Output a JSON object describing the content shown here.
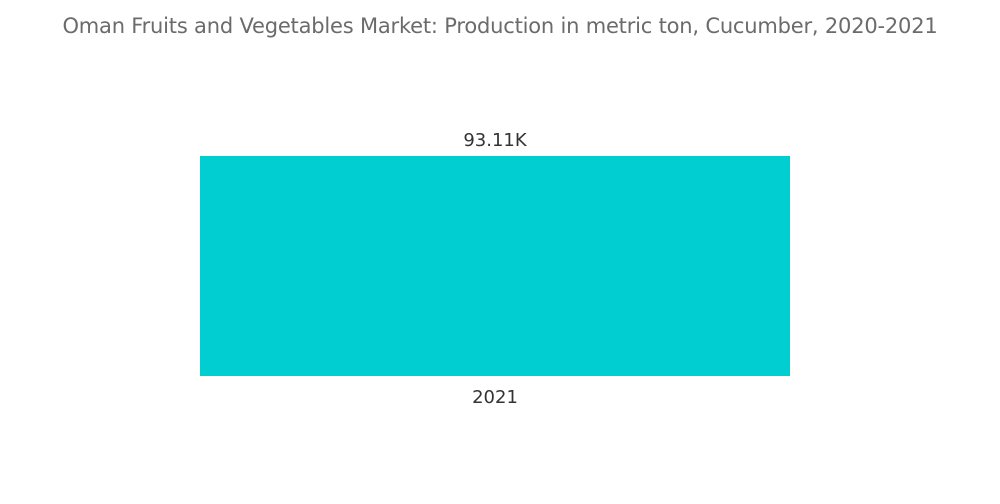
{
  "chart_data": {
    "type": "bar",
    "title": "Oman Fruits and Vegetables Market: Production in metric ton, Cucumber, 2020-2021",
    "categories": [
      "2021"
    ],
    "values": [
      93110
    ],
    "value_labels": [
      "93.11K"
    ],
    "xlabel": "",
    "ylabel": "",
    "ylim": [
      0,
      93110
    ],
    "grid": false,
    "legend": "none",
    "bar_color": "#00CED1"
  }
}
